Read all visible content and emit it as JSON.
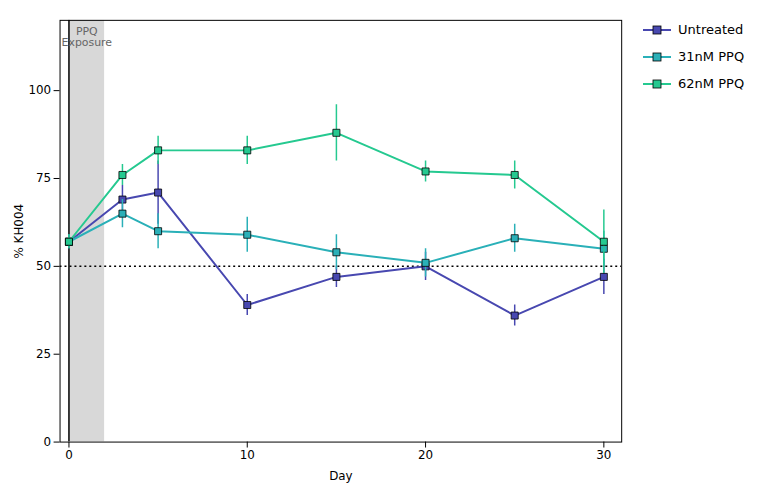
{
  "chart_data": {
    "type": "line",
    "xlabel": "Day",
    "ylabel": "% KH004",
    "x": [
      0,
      3,
      5,
      10,
      15,
      20,
      25,
      30
    ],
    "series": [
      {
        "name": "Untreated",
        "color": "#4848b0",
        "values": [
          57,
          69,
          71,
          39,
          47,
          50,
          36,
          47
        ],
        "errors": [
          2,
          4,
          9,
          3,
          3,
          4,
          3,
          5
        ]
      },
      {
        "name": "31nM PPQ",
        "color": "#2ab0b8",
        "values": [
          57,
          65,
          60,
          59,
          54,
          51,
          58,
          55
        ],
        "errors": [
          2,
          4,
          5,
          5,
          5,
          4,
          4,
          5
        ]
      },
      {
        "name": "62nM PPQ",
        "color": "#25c990",
        "values": [
          57,
          76,
          83,
          83,
          88,
          77,
          76,
          57
        ],
        "errors": [
          2,
          3,
          4,
          4,
          8,
          3,
          4,
          9
        ]
      }
    ],
    "marker": "square",
    "line_style": "solid",
    "xlim": [
      -0.5,
      31
    ],
    "ylim": [
      0,
      120
    ],
    "xticks": [
      0,
      10,
      20,
      30
    ],
    "yticks": [
      0,
      25,
      50,
      75,
      100
    ],
    "grid": false,
    "legend": "right",
    "shaded_regions": [
      {
        "x": [
          0,
          2
        ],
        "color": "#d8d8d8"
      }
    ],
    "reference_lines": [
      {
        "x": 0,
        "color": "#000000",
        "line_style": "solid"
      },
      {
        "y": 50,
        "color": "#000000",
        "line_style": "dotted"
      }
    ],
    "annotations": [
      {
        "text": "PPQ\nExposure",
        "x": 1,
        "y": 118
      }
    ]
  }
}
